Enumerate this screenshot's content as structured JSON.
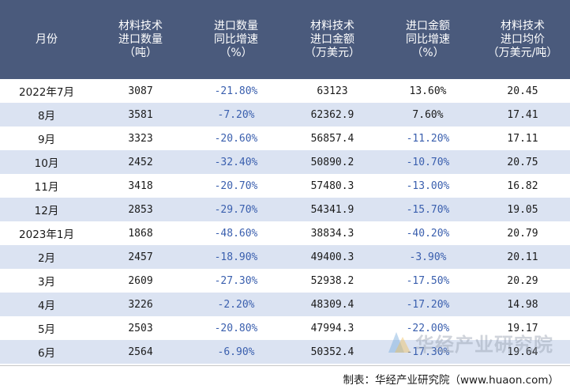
{
  "chart_data": {
    "type": "table",
    "columns": [
      [
        "月份"
      ],
      [
        "材料技术",
        "进口数量",
        "（吨）"
      ],
      [
        "进口数量",
        "同比增速",
        "（%）"
      ],
      [
        "材料技术",
        "进口金额",
        "（万美元）"
      ],
      [
        "进口金额",
        "同比增速",
        "（%）"
      ],
      [
        "材料技术",
        "进口均价",
        "（万美元/吨）"
      ]
    ],
    "rows": [
      [
        "2022年7月",
        "3087",
        "-21.80%",
        "63123",
        "13.60%",
        "20.45"
      ],
      [
        "8月",
        "3581",
        "-7.20%",
        "62362.9",
        "7.60%",
        "17.41"
      ],
      [
        "9月",
        "3323",
        "-20.60%",
        "56857.4",
        "-11.20%",
        "17.11"
      ],
      [
        "10月",
        "2452",
        "-32.40%",
        "50890.2",
        "-10.70%",
        "20.75"
      ],
      [
        "11月",
        "3418",
        "-20.70%",
        "57480.3",
        "-13.00%",
        "16.82"
      ],
      [
        "12月",
        "2853",
        "-29.70%",
        "54341.9",
        "-15.70%",
        "19.05"
      ],
      [
        "2023年1月",
        "1868",
        "-48.60%",
        "38834.3",
        "-40.20%",
        "20.79"
      ],
      [
        "2月",
        "2457",
        "-18.90%",
        "49400.3",
        "-3.90%",
        "20.11"
      ],
      [
        "3月",
        "2609",
        "-27.30%",
        "52938.2",
        "-17.50%",
        "20.29"
      ],
      [
        "4月",
        "3226",
        "-2.20%",
        "48309.4",
        "-17.20%",
        "14.98"
      ],
      [
        "5月",
        "2503",
        "-20.80%",
        "47994.3",
        "-22.00%",
        "19.17"
      ],
      [
        "6月",
        "2564",
        "-6.90%",
        "50352.4",
        "-17.30%",
        "19.64"
      ]
    ]
  },
  "footer": {
    "source": "制表：华经产业研究院（www.huaon.com）"
  },
  "watermark": {
    "text": "华经产业研究院"
  },
  "colors": {
    "header_bg": "#4a5a7c",
    "stripe_bg": "#dbe3f2",
    "negative_text": "#3a5fae"
  }
}
